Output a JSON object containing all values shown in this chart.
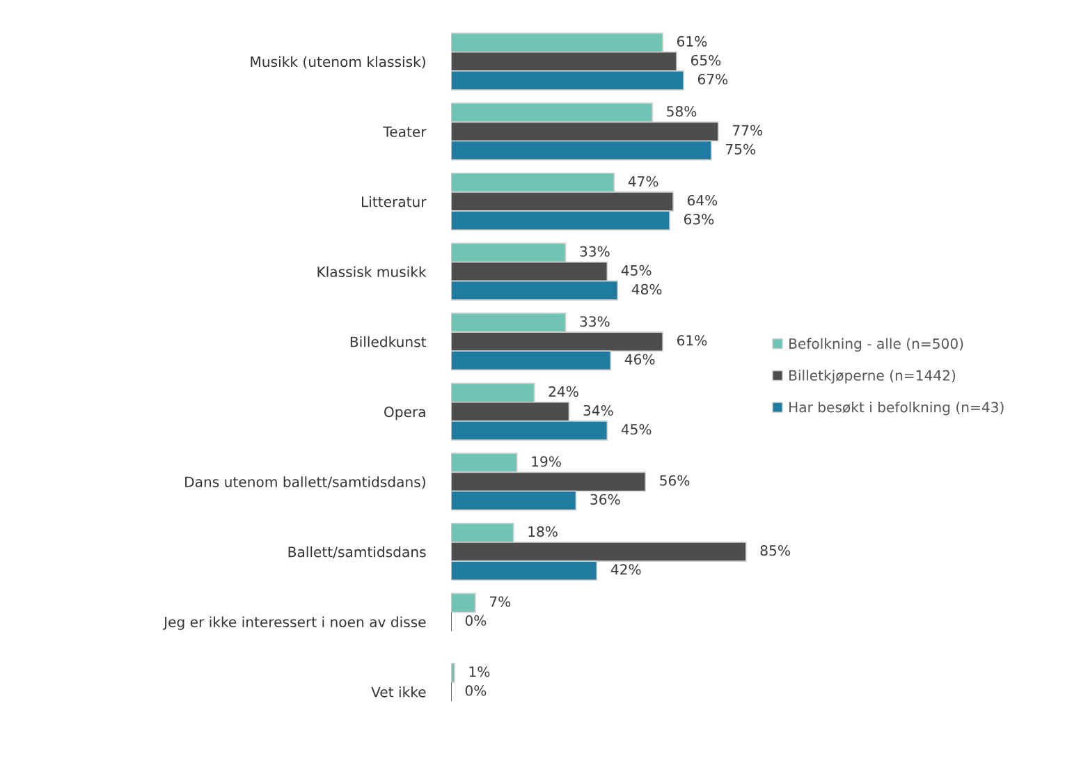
{
  "chart_data": {
    "type": "bar",
    "orientation": "horizontal",
    "categories": [
      "Musikk (utenom klassisk)",
      "Teater",
      "Litteratur",
      "Klassisk musikk",
      "Billedkunst",
      "Opera",
      "Dans utenom ballett/samtidsdans)",
      "Ballett/samtidsdans",
      "Jeg er ikke interessert i noen av disse",
      "Vet ikke"
    ],
    "series": [
      {
        "name": "Befolkning - alle (n=500)",
        "color": "#70c4b3",
        "values": [
          61,
          58,
          47,
          33,
          33,
          24,
          19,
          18,
          7,
          1
        ],
        "value_labels": [
          "61%",
          "58%",
          "47%",
          "33%",
          "33%",
          "24%",
          "19%",
          "18%",
          "7%",
          "1%"
        ]
      },
      {
        "name": "Billetkjøperne (n=1442)",
        "color": "#4d4e4c",
        "values": [
          65,
          77,
          64,
          45,
          61,
          34,
          56,
          85,
          0,
          0
        ],
        "value_labels": [
          "65%",
          "77%",
          "64%",
          "45%",
          "61%",
          "34%",
          "56%",
          "85%",
          "0%",
          "0%"
        ]
      },
      {
        "name": "Har besøkt i befolkning (n=43)",
        "color": "#1f7ba0",
        "values": [
          67,
          75,
          63,
          48,
          46,
          45,
          36,
          42,
          null,
          null
        ],
        "value_labels": [
          "67%",
          "75%",
          "63%",
          "48%",
          "46%",
          "45%",
          "36%",
          "42%",
          null,
          null
        ]
      }
    ],
    "tick_labels": "y",
    "legend": "right",
    "grid": false
  }
}
